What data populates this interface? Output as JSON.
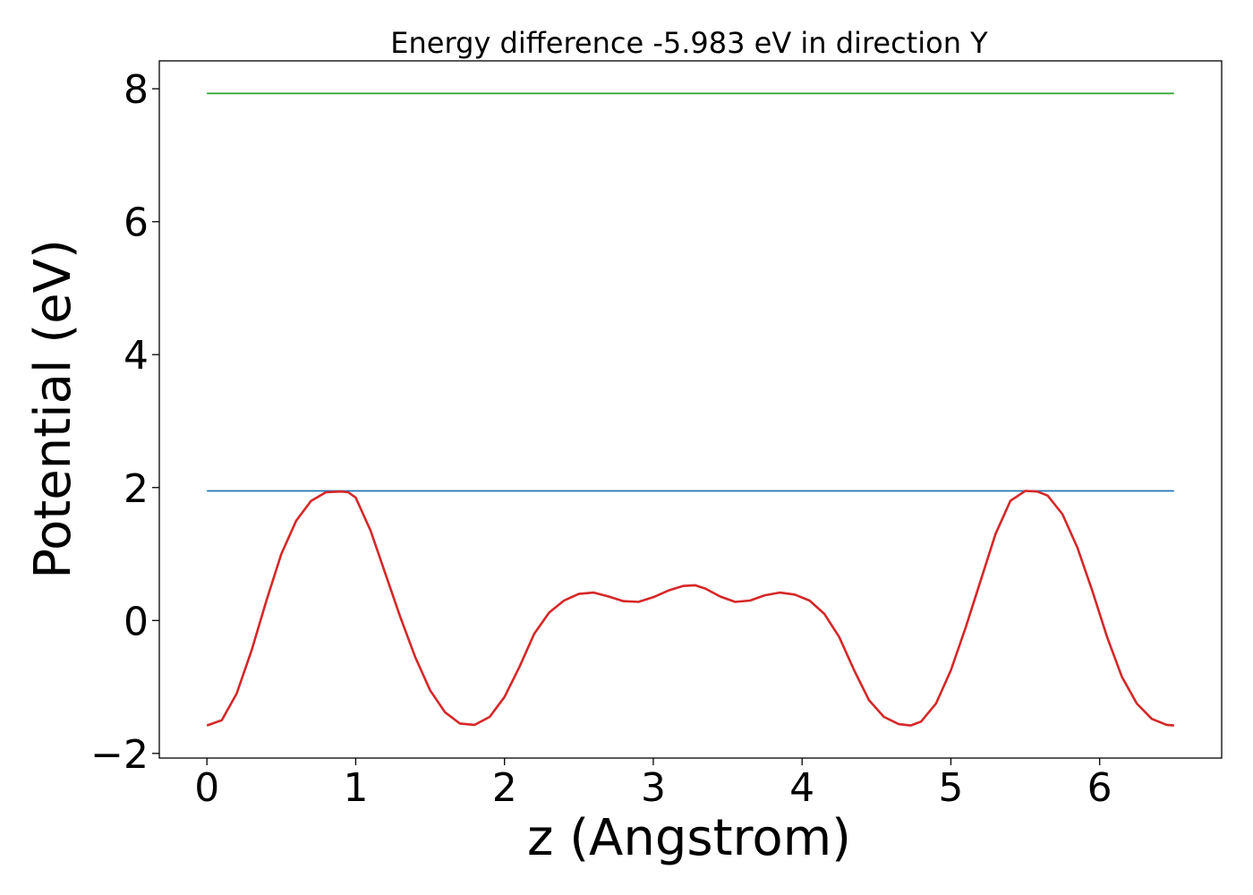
{
  "chart_data": {
    "type": "line",
    "title": "Energy difference -5.983 eV in direction Y",
    "xlabel": "z (Angstrom)",
    "ylabel": "Potential (eV)",
    "xlim": [
      -0.32,
      6.82
    ],
    "ylim": [
      -2.07,
      8.42
    ],
    "x_ticks": [
      0,
      1,
      2,
      3,
      4,
      5,
      6
    ],
    "y_ticks": [
      -2,
      0,
      2,
      4,
      6,
      8
    ],
    "y_tick_labels": [
      "−2",
      "0",
      "2",
      "4",
      "6",
      "8"
    ],
    "grid": false,
    "series": [
      {
        "color": "#1f77b4",
        "x": [
          0,
          6.5
        ],
        "y": [
          1.95,
          1.95
        ]
      },
      {
        "color": "#2ca02c",
        "x": [
          0,
          6.5
        ],
        "y": [
          7.93,
          7.93
        ]
      },
      {
        "color": "#d62728",
        "x": [
          0.0,
          0.1,
          0.2,
          0.3,
          0.4,
          0.5,
          0.6,
          0.7,
          0.8,
          0.9,
          0.95,
          1.0,
          1.1,
          1.2,
          1.3,
          1.4,
          1.5,
          1.6,
          1.7,
          1.8,
          1.9,
          2.0,
          2.1,
          2.2,
          2.3,
          2.4,
          2.5,
          2.6,
          2.7,
          2.8,
          2.9,
          3.0,
          3.1,
          3.2,
          3.28,
          3.35,
          3.45,
          3.55,
          3.65,
          3.75,
          3.85,
          3.95,
          4.05,
          4.15,
          4.25,
          4.35,
          4.45,
          4.55,
          4.65,
          4.73,
          4.8,
          4.9,
          5.0,
          5.1,
          5.2,
          5.3,
          5.4,
          5.5,
          5.58,
          5.65,
          5.75,
          5.85,
          5.95,
          6.05,
          6.15,
          6.25,
          6.35,
          6.45,
          6.5
        ],
        "y": [
          -1.58,
          -1.5,
          -1.1,
          -0.45,
          0.3,
          1.0,
          1.5,
          1.8,
          1.93,
          1.94,
          1.93,
          1.85,
          1.35,
          0.7,
          0.05,
          -0.55,
          -1.05,
          -1.38,
          -1.55,
          -1.57,
          -1.45,
          -1.15,
          -0.7,
          -0.2,
          0.12,
          0.3,
          0.4,
          0.42,
          0.36,
          0.29,
          0.28,
          0.35,
          0.45,
          0.52,
          0.53,
          0.48,
          0.36,
          0.28,
          0.3,
          0.38,
          0.42,
          0.39,
          0.3,
          0.1,
          -0.25,
          -0.75,
          -1.2,
          -1.45,
          -1.56,
          -1.58,
          -1.52,
          -1.25,
          -0.75,
          -0.1,
          0.6,
          1.3,
          1.8,
          1.95,
          1.94,
          1.88,
          1.6,
          1.1,
          0.45,
          -0.25,
          -0.85,
          -1.25,
          -1.48,
          -1.57,
          -1.58
        ]
      }
    ]
  }
}
